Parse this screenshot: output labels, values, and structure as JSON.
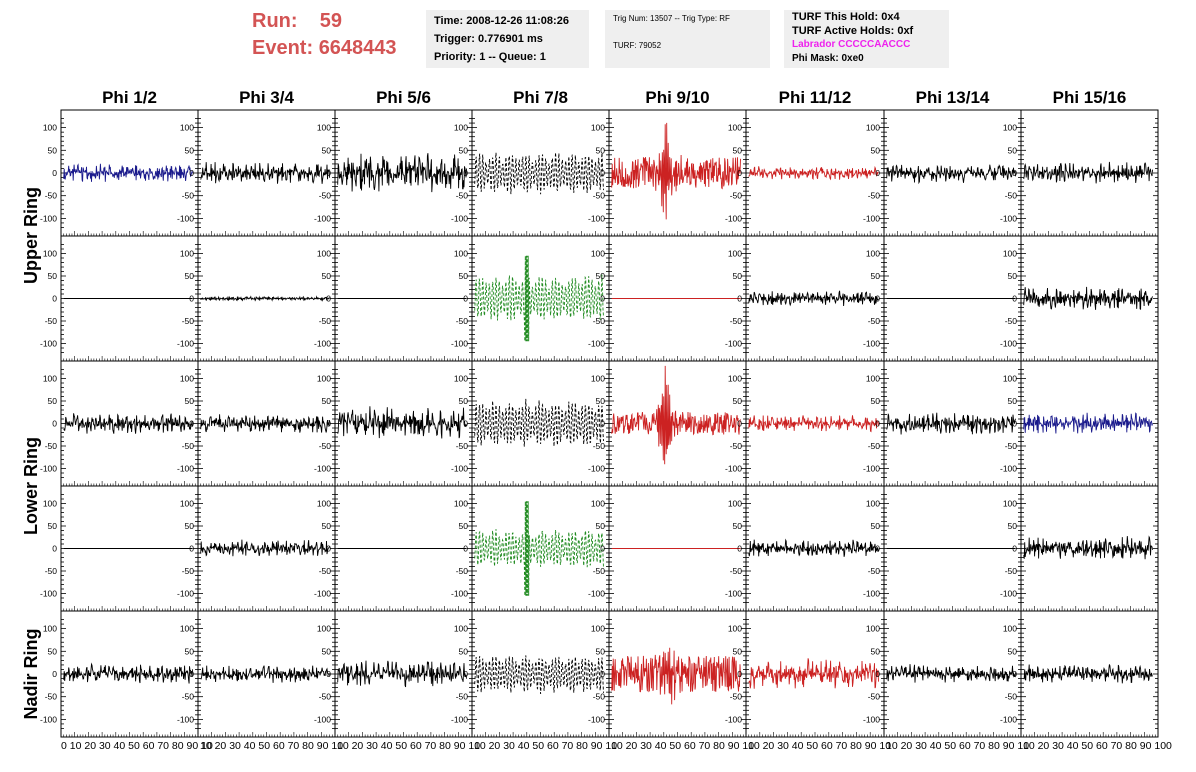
{
  "header": {
    "run_label": "Run:",
    "run_value": "59",
    "event_label": "Event:",
    "event_value": "6648443",
    "time": "Time: 2008-12-26 11:08:26",
    "trigger": "Trigger: 0.776901 ms",
    "priority": "Priority: 1 -- Queue: 1",
    "trig_num": "Trig Num: 13507 -- Trig Type: RF",
    "turf": "TURF: 79052",
    "turf_this_hold": "TURF This Hold: 0x4",
    "turf_active_holds": "TURF Active Holds: 0xf",
    "labrador": "Labrador CCCCCAACCC",
    "phi_mask": "Phi Mask: 0xe0"
  },
  "colors": {
    "run_text": "#d35454",
    "labrador_text": "#ee22ee",
    "trace_black": "#000000",
    "trace_blue": "#1a1a8c",
    "trace_red": "#cc2222",
    "trace_green": "#1f8a1f",
    "info_bg": "#efefef"
  },
  "chart_data": {
    "type": "line",
    "columns": [
      "Phi 1/2",
      "Phi 3/4",
      "Phi 5/6",
      "Phi 7/8",
      "Phi 9/10",
      "Phi 11/12",
      "Phi 13/14",
      "Phi 15/16"
    ],
    "rows": [
      "Upper Ring",
      "Upper Ring",
      "Lower Ring",
      "Lower Ring",
      "Nadir Ring"
    ],
    "row_labels": [
      "Upper Ring",
      "Lower Ring",
      "Nadir Ring"
    ],
    "xlim": [
      0,
      100
    ],
    "ylim": [
      -130,
      130
    ],
    "yticks": [
      100,
      50,
      0,
      -50,
      -100
    ],
    "ytick_labels": [
      "100",
      "50",
      "0",
      "-50",
      "-100"
    ],
    "x_tick_label_strings": [
      "0 10 20 30 40 50 60 70 80 90 10",
      "10 20 30 40 50 60 70 80 90 10",
      "10 20 30 40 50 60 70 80 90 10",
      "10 20 30 40 50 60 70 80 90 10",
      "10 20 30 40 50 60 70 80 90 10",
      "10 20 30 40 50 60 70 80 90 10",
      "10 20 30 40 50 60 70 80 90 10",
      "10 20 30 40 50 60 70 80 90 100"
    ],
    "panels": [
      [
        {
          "color": "blue",
          "style": "solid",
          "amp": 22,
          "kind": "noise"
        },
        {
          "color": "black",
          "style": "solid",
          "amp": 25,
          "kind": "noise"
        },
        {
          "color": "black",
          "style": "solid",
          "amp": 45,
          "kind": "noise"
        },
        {
          "color": "black",
          "style": "dashed",
          "amp": 48,
          "kind": "beat"
        },
        {
          "color": "red",
          "style": "solid",
          "amp": 35,
          "kind": "impulse",
          "peak": 120,
          "peak_x": 42
        },
        {
          "color": "red",
          "style": "solid",
          "amp": 15,
          "kind": "noise"
        },
        {
          "color": "black",
          "style": "solid",
          "amp": 22,
          "kind": "noise"
        },
        {
          "color": "black",
          "style": "solid",
          "amp": 25,
          "kind": "noise"
        }
      ],
      [
        {
          "color": "black",
          "style": "solid",
          "amp": 0,
          "kind": "flat"
        },
        {
          "color": "black",
          "style": "solid",
          "amp": 5,
          "kind": "noise"
        },
        {
          "color": "black",
          "style": "solid",
          "amp": 0,
          "kind": "flat"
        },
        {
          "color": "green",
          "style": "dashed",
          "amp": 55,
          "kind": "beat",
          "peak": 95,
          "peak_x": 40
        },
        {
          "color": "red",
          "style": "solid",
          "amp": 0,
          "kind": "flat"
        },
        {
          "color": "black",
          "style": "solid",
          "amp": 18,
          "kind": "noise"
        },
        {
          "color": "black",
          "style": "solid",
          "amp": 0,
          "kind": "flat"
        },
        {
          "color": "black",
          "style": "solid",
          "amp": 28,
          "kind": "noise"
        }
      ],
      [
        {
          "color": "black",
          "style": "solid",
          "amp": 25,
          "kind": "noise"
        },
        {
          "color": "black",
          "style": "solid",
          "amp": 22,
          "kind": "noise"
        },
        {
          "color": "black",
          "style": "solid",
          "amp": 40,
          "kind": "noise"
        },
        {
          "color": "black",
          "style": "dashed",
          "amp": 55,
          "kind": "beat"
        },
        {
          "color": "red",
          "style": "solid",
          "amp": 25,
          "kind": "impulse",
          "peak": 120,
          "peak_x": 41
        },
        {
          "color": "red",
          "style": "solid",
          "amp": 20,
          "kind": "noise"
        },
        {
          "color": "black",
          "style": "solid",
          "amp": 25,
          "kind": "noise"
        },
        {
          "color": "blue",
          "style": "solid",
          "amp": 25,
          "kind": "noise"
        }
      ],
      [
        {
          "color": "black",
          "style": "solid",
          "amp": 0,
          "kind": "flat"
        },
        {
          "color": "black",
          "style": "solid",
          "amp": 20,
          "kind": "noise"
        },
        {
          "color": "black",
          "style": "solid",
          "amp": 0,
          "kind": "flat"
        },
        {
          "color": "green",
          "style": "dashed",
          "amp": 45,
          "kind": "beat",
          "peak": 105,
          "peak_x": 40
        },
        {
          "color": "red",
          "style": "solid",
          "amp": 0,
          "kind": "flat"
        },
        {
          "color": "black",
          "style": "solid",
          "amp": 20,
          "kind": "noise"
        },
        {
          "color": "black",
          "style": "solid",
          "amp": 0,
          "kind": "flat"
        },
        {
          "color": "black",
          "style": "solid",
          "amp": 28,
          "kind": "noise"
        }
      ],
      [
        {
          "color": "black",
          "style": "solid",
          "amp": 22,
          "kind": "noise"
        },
        {
          "color": "black",
          "style": "solid",
          "amp": 20,
          "kind": "noise"
        },
        {
          "color": "black",
          "style": "solid",
          "amp": 32,
          "kind": "noise"
        },
        {
          "color": "black",
          "style": "dashed",
          "amp": 45,
          "kind": "beat"
        },
        {
          "color": "red",
          "style": "solid",
          "amp": 40,
          "kind": "impulse",
          "peak": 60,
          "peak_x": 45
        },
        {
          "color": "red",
          "style": "solid",
          "amp": 35,
          "kind": "noise"
        },
        {
          "color": "black",
          "style": "solid",
          "amp": 22,
          "kind": "noise"
        },
        {
          "color": "black",
          "style": "solid",
          "amp": 22,
          "kind": "noise"
        }
      ]
    ]
  }
}
